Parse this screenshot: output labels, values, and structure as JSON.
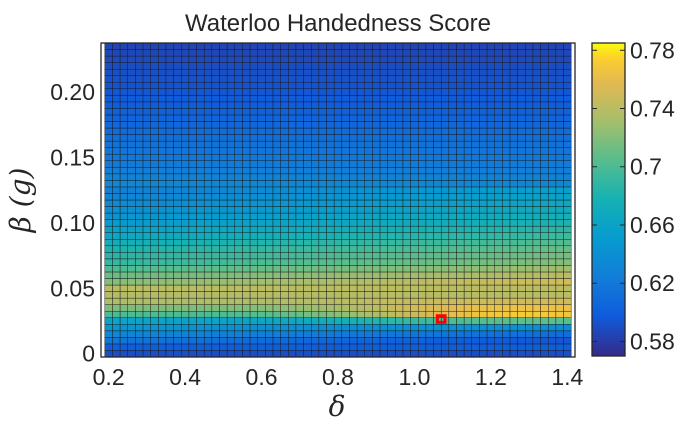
{
  "chart_data": {
    "type": "heatmap",
    "title": "Waterloo Handedness Score",
    "xlabel": "δ",
    "ylabel": "β (g)",
    "xlim": [
      0.18,
      1.42
    ],
    "ylim": [
      -0.0025,
      0.2375
    ],
    "x_ticks": [
      "0.2",
      "0.4",
      "0.6",
      "0.8",
      "1.0",
      "1.2",
      "1.4"
    ],
    "y_ticks": [
      "0",
      "0.05",
      "0.10",
      "0.15",
      "0.20"
    ],
    "x_range": [
      0.2,
      1.4
    ],
    "x_step": 0.02,
    "y_range": [
      0.0,
      0.235
    ],
    "y_step": 0.005,
    "colorbar": {
      "min": 0.57,
      "max": 0.785,
      "ticks": [
        "0.58",
        "0.62",
        "0.66",
        "0.7",
        "0.74",
        "0.78"
      ],
      "colormap": "parula"
    },
    "band_profile": [
      {
        "beta": 0.0,
        "value": 0.59
      },
      {
        "beta": 0.01,
        "value": 0.61
      },
      {
        "beta": 0.02,
        "value": 0.64
      },
      {
        "beta": 0.025,
        "value": 0.66
      },
      {
        "beta": 0.03,
        "value": 0.7
      },
      {
        "beta": 0.04,
        "value": 0.735
      },
      {
        "beta": 0.05,
        "value": 0.74
      },
      {
        "beta": 0.06,
        "value": 0.72
      },
      {
        "beta": 0.07,
        "value": 0.7
      },
      {
        "beta": 0.08,
        "value": 0.69
      },
      {
        "beta": 0.09,
        "value": 0.675
      },
      {
        "beta": 0.1,
        "value": 0.66
      },
      {
        "beta": 0.12,
        "value": 0.64
      },
      {
        "beta": 0.14,
        "value": 0.625
      },
      {
        "beta": 0.17,
        "value": 0.61
      },
      {
        "beta": 0.2,
        "value": 0.595
      },
      {
        "beta": 0.235,
        "value": 0.585
      }
    ],
    "highlight": {
      "delta": 1.07,
      "beta": 0.025,
      "color": "#ff0000"
    },
    "grid": false
  }
}
